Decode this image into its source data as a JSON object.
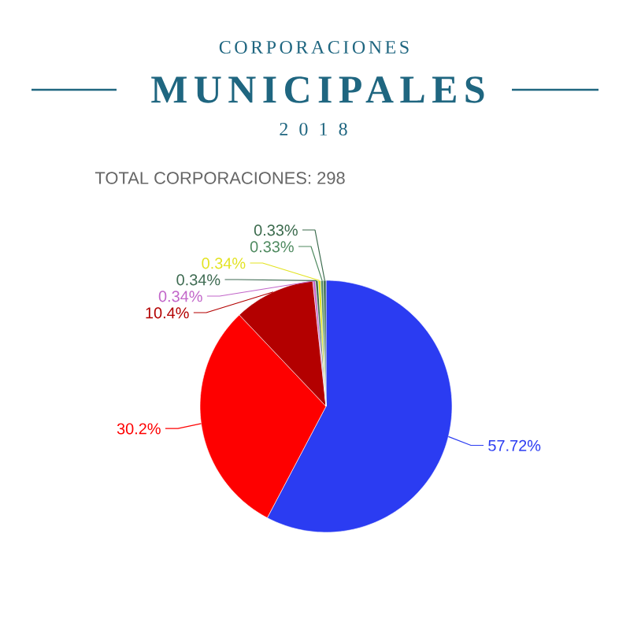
{
  "chart_data": {
    "type": "pie",
    "title": "MUNICIPALES",
    "subtitle": "2 0 1 8",
    "annotations": [
      "CORPORACIONES",
      "TOTAL CORPORACIONES: 298"
    ],
    "categories": [
      null,
      null,
      null,
      null,
      null,
      null,
      null,
      null
    ],
    "values": [
      57.72,
      30.2,
      10.4,
      0.34,
      0.34,
      0.34,
      0.33,
      0.33
    ],
    "colors": [
      "#2b3cf2",
      "#fe0000",
      "#b30000",
      "#c266c9",
      "#3e6b52",
      "#e3e322",
      "#4f8a60",
      "#3a6a4c"
    ],
    "value_labels": [
      "57.72%",
      "30.2%",
      "10.4%",
      "0.34%",
      "0.34%",
      "0.34%",
      "0.33%",
      "0.33%"
    ]
  }
}
